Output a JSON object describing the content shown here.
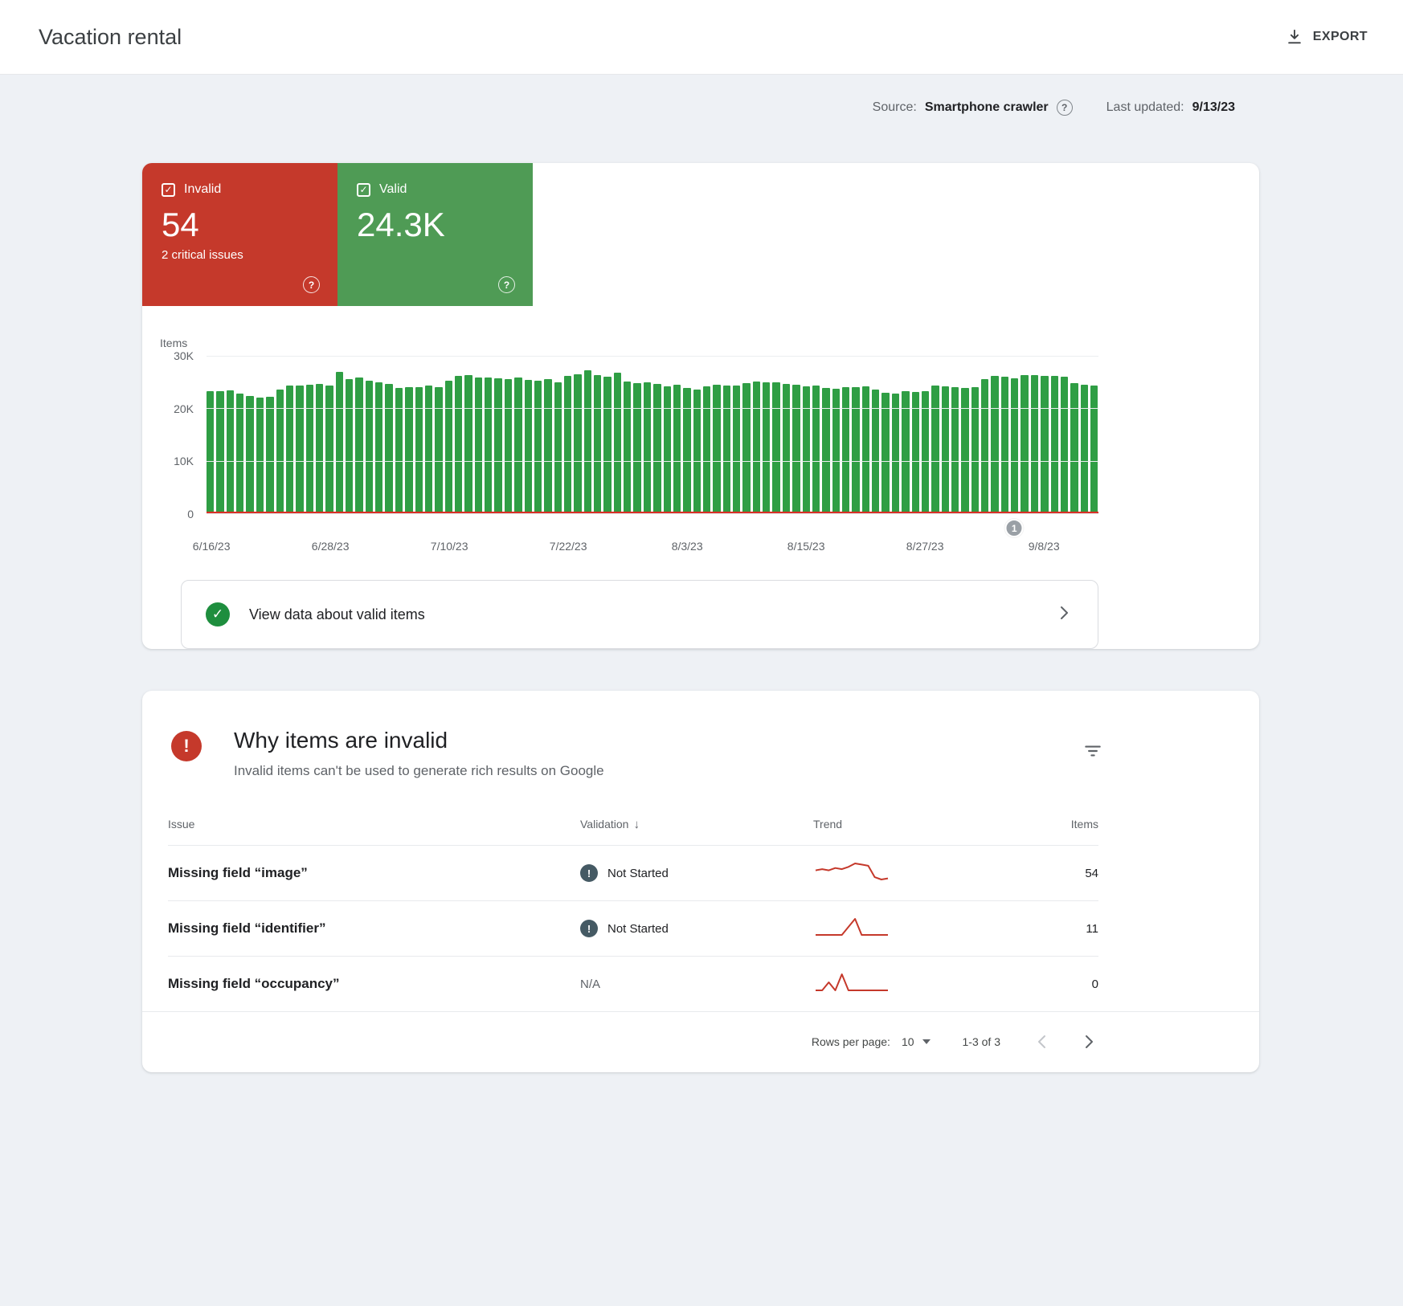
{
  "header": {
    "title": "Vacation rental",
    "export_label": "EXPORT"
  },
  "meta": {
    "source_label": "Source:",
    "source_value": "Smartphone crawler",
    "updated_label": "Last updated:",
    "updated_value": "9/13/23"
  },
  "summary": {
    "invalid": {
      "label": "Invalid",
      "value": "54",
      "sub": "2 critical issues",
      "color": "#c5392b"
    },
    "valid": {
      "label": "Valid",
      "value": "24.3K",
      "color": "#4f9b55"
    }
  },
  "chart_data": {
    "type": "bar",
    "title": "Items",
    "ylabel": "Items",
    "ylim": [
      0,
      30000
    ],
    "yticks": [
      {
        "label": "30K",
        "value": 30000
      },
      {
        "label": "20K",
        "value": 20000
      },
      {
        "label": "10K",
        "value": 10000
      },
      {
        "label": "0",
        "value": 0
      }
    ],
    "x_tick_labels": [
      "6/16/23",
      "6/28/23",
      "7/10/23",
      "7/22/23",
      "8/3/23",
      "8/15/23",
      "8/27/23",
      "9/8/23"
    ],
    "x_tick_day_indices": [
      0,
      12,
      24,
      36,
      48,
      60,
      72,
      84
    ],
    "grid": true,
    "annotation": {
      "label": "1",
      "day_index": 81
    },
    "series": [
      {
        "name": "Valid",
        "color": "#2f9e44",
        "values": [
          23200,
          23300,
          23400,
          22800,
          22300,
          22100,
          22200,
          23600,
          24300,
          24400,
          24500,
          24600,
          24300,
          27000,
          25600,
          25900,
          25300,
          24900,
          24600,
          23900,
          24000,
          24100,
          24300,
          24100,
          25300,
          26200,
          26400,
          25800,
          25900,
          25700,
          25500,
          25800,
          25400,
          25200,
          25500,
          25000,
          26200,
          26500,
          27200,
          26300,
          26000,
          26800,
          25100,
          24800,
          25000,
          24600,
          24200,
          24500,
          23900,
          23500,
          24200,
          24500,
          24300,
          24400,
          24800,
          25100,
          24900,
          25000,
          24600,
          24500,
          24200,
          24300,
          23900,
          23800,
          24000,
          24100,
          24200,
          23600,
          23000,
          22800,
          23200,
          23100,
          23300,
          24400,
          24200,
          24100,
          23900,
          24000,
          25500,
          26100,
          26000,
          25700,
          26300,
          26400,
          26100,
          26200,
          26000,
          24800,
          24500,
          24300
        ]
      },
      {
        "name": "Invalid",
        "color": "#d93025",
        "constant_value": 54
      }
    ]
  },
  "valid_row": {
    "text": "View data about valid items"
  },
  "issues": {
    "title": "Why items are invalid",
    "subtitle": "Invalid items can't be used to generate rich results on Google",
    "columns": {
      "issue": "Issue",
      "validation": "Validation",
      "trend": "Trend",
      "items": "Items"
    },
    "rows": [
      {
        "issue": "Missing field “image”",
        "validation": "Not Started",
        "has_icon": true,
        "trend": [
          54,
          55,
          54,
          56,
          55,
          57,
          60,
          59,
          58,
          48,
          46,
          47
        ],
        "items": "54"
      },
      {
        "issue": "Missing field “identifier”",
        "validation": "Not Started",
        "has_icon": true,
        "trend": [
          11,
          11,
          11,
          11,
          11,
          12,
          13,
          11,
          11,
          11,
          11,
          11
        ],
        "items": "11"
      },
      {
        "issue": "Missing field “occupancy”",
        "validation": "N/A",
        "has_icon": false,
        "trend": [
          0,
          0,
          1,
          0,
          2,
          0,
          0,
          0,
          0,
          0,
          0,
          0
        ],
        "items": "0"
      }
    ],
    "trend_color": "#c5392b",
    "pagination": {
      "rows_per_page_label": "Rows per page:",
      "rows_per_page": "10",
      "range": "1-3 of 3"
    }
  }
}
